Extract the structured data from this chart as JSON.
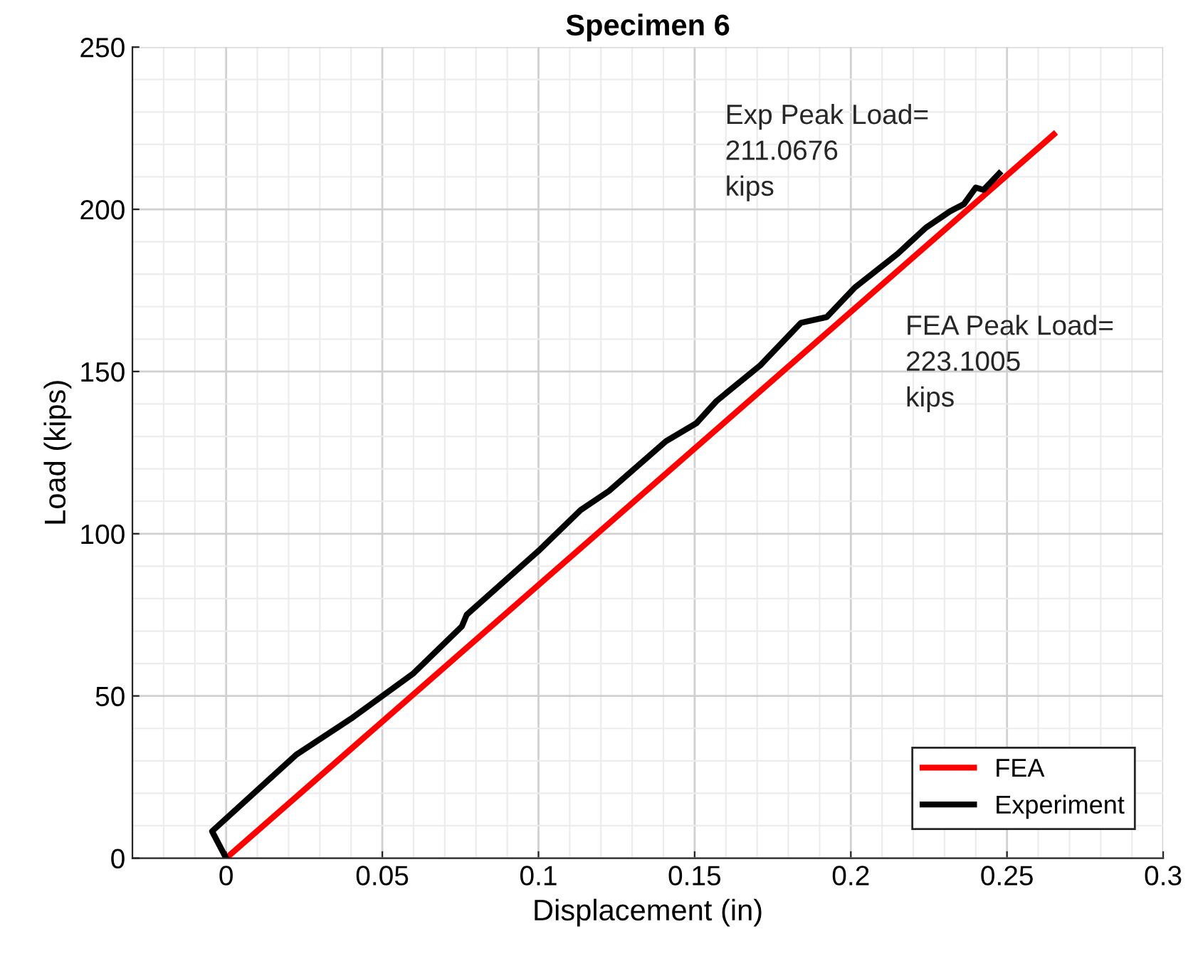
{
  "chart_data": {
    "type": "line",
    "title": "Specimen 6",
    "xlabel": "Displacement (in)",
    "ylabel": "Load (kips)",
    "xlim": [
      -0.03,
      0.3
    ],
    "xticks": [
      0,
      0.05,
      0.1,
      0.15,
      0.2,
      0.25,
      0.3
    ],
    "ylim": [
      0,
      250
    ],
    "yticks": [
      0,
      50,
      100,
      150,
      200,
      250
    ],
    "grid": true,
    "legend": "bottom right",
    "line_style": "solid",
    "marker": "none",
    "annotations": [
      "Exp Peak Load=\n211.0676\nkips",
      "FEA Peak Load=\n223.1005\nkips"
    ],
    "series": [
      {
        "name": "FEA",
        "color": "#ff0000",
        "x": [
          0,
          0.265
        ],
        "values": [
          0,
          223.1005
        ]
      },
      {
        "name": "Experiment",
        "color": "#000000",
        "x": [
          0,
          -0.0045,
          0.0226,
          0.04,
          0.06,
          0.0755,
          0.077,
          0.1,
          0.1135,
          0.1226,
          0.1408,
          0.1506,
          0.157,
          0.171,
          0.184,
          0.1923,
          0.2014,
          0.215,
          0.224,
          0.2318,
          0.2362,
          0.24,
          0.2425,
          0.2475
        ],
        "values": [
          0,
          8.3,
          32,
          43,
          57,
          71.5,
          75,
          94.7,
          107.3,
          113.2,
          128.5,
          134.1,
          140.9,
          151.9,
          165,
          166.8,
          176,
          186.3,
          194.3,
          199.4,
          201.6,
          206.7,
          206,
          211.0676
        ]
      }
    ]
  }
}
